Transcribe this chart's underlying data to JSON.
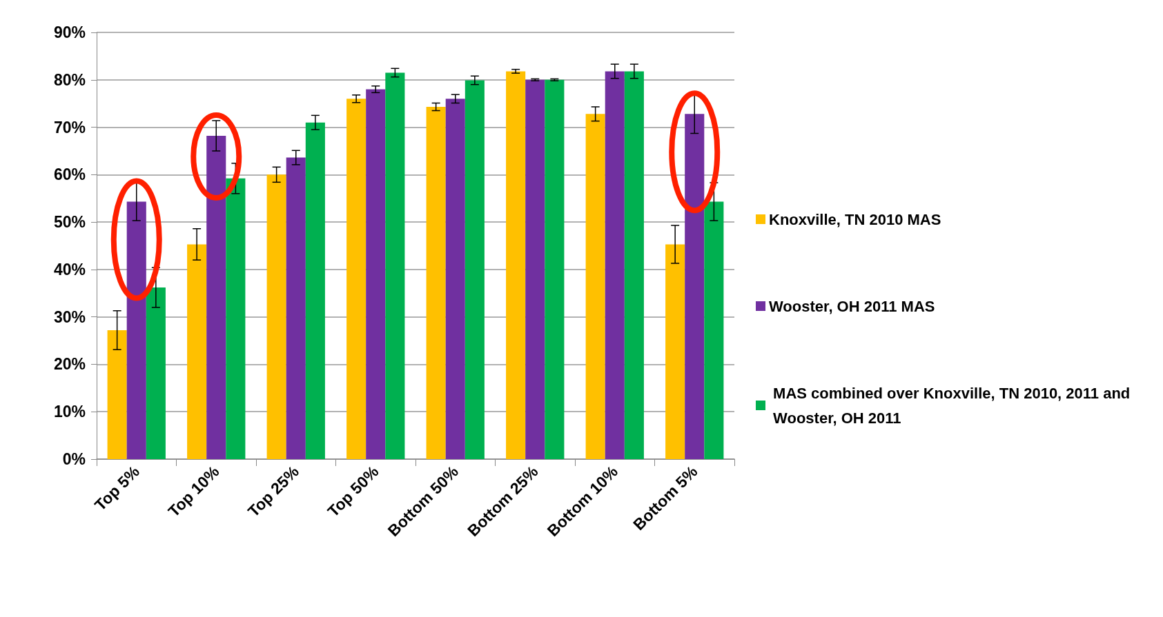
{
  "chart_data": {
    "type": "bar",
    "categories": [
      "Top 5%",
      "Top 10%",
      "Top 25%",
      "Top 50%",
      "Bottom 50%",
      "Bottom 25%",
      "Bottom 10%",
      "Bottom 5%"
    ],
    "series": [
      {
        "name": "Knoxville, TN 2010 MAS",
        "color": "#ffc000",
        "values": [
          27.2,
          45.3,
          60.0,
          76.0,
          74.3,
          81.8,
          72.8,
          45.3
        ],
        "errors": [
          4.1,
          3.3,
          1.6,
          0.8,
          0.8,
          0.4,
          1.5,
          4.0
        ]
      },
      {
        "name": "Wooster, OH 2011 MAS",
        "color": "#7030a0",
        "values": [
          54.3,
          68.2,
          63.6,
          78.0,
          76.0,
          80.0,
          81.8,
          72.8
        ],
        "errors": [
          4.0,
          3.2,
          1.5,
          0.7,
          0.9,
          0.2,
          1.5,
          4.1
        ]
      },
      {
        "name": " MAS combined over Knoxville, TN 2010, 2011 and Wooster, OH 2011",
        "color": "#00b050",
        "values": [
          36.2,
          59.2,
          71.0,
          81.5,
          79.9,
          80.0,
          81.8,
          54.3
        ],
        "errors": [
          4.2,
          3.2,
          1.5,
          0.9,
          0.9,
          0.2,
          1.5,
          4.0
        ]
      }
    ],
    "ylim": [
      0,
      90
    ],
    "yticks": [
      {
        "value": 0,
        "label": "0%"
      },
      {
        "value": 10,
        "label": "10%"
      },
      {
        "value": 20,
        "label": "20%"
      },
      {
        "value": 30,
        "label": "30%"
      },
      {
        "value": 40,
        "label": "40%"
      },
      {
        "value": 50,
        "label": "50%"
      },
      {
        "value": 60,
        "label": "60%"
      },
      {
        "value": 70,
        "label": "70%"
      },
      {
        "value": 80,
        "label": "80%"
      },
      {
        "value": 90,
        "label": "90%"
      }
    ],
    "grid": "y",
    "legend": "right"
  }
}
